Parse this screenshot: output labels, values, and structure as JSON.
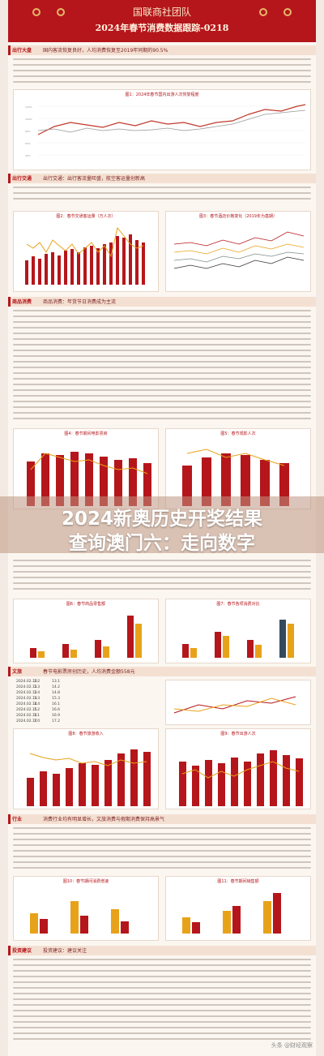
{
  "header": {
    "line1": "国联商社团队",
    "line2": "2024年春节消费数据跟踪-0218"
  },
  "sections": [
    {
      "tag": "出行大盘",
      "text": "国内客流恢复良好，人均消费恢复至2019年同期的90.5%"
    },
    {
      "tag": "出行交通",
      "text": "出行交通：出行客流量旺盛，航空客运量创新高"
    },
    {
      "tag": "商品消费",
      "text": "商品消费：年货节日消费成为主流"
    },
    {
      "tag": "文旅",
      "text": "春节电影票房创历史，人均消费金额558元"
    },
    {
      "tag": "行业",
      "text": "消费行业均有明显增长，文旅消费与假期消费保持高景气"
    },
    {
      "tag": "投资建议",
      "text": "投资建议：建议关注"
    }
  ],
  "banner": {
    "line1": "2024新奥历史开奖结果",
    "line2": "查询澳门六：走向数字"
  },
  "chart_captions": {
    "c1": "图1：2024年春节国内出游人次恢复程度",
    "c2": "图2：春节交通客运量（万人次）",
    "c3": "图3：春节酒店价格变化（2019年为基期）",
    "c4": "图4：春节期间电影票房",
    "c5": "图5：春节观影人次",
    "c6": "图6：春节商品零售额",
    "c7": "图7：春节各项消费对比",
    "c8": "图8：春节旅游收入",
    "c9": "图9：春节出游人次",
    "c10": "图10：春节期间消费增速",
    "c11": "图11：春节期间销售额"
  },
  "table": {
    "rows": [
      [
        "2024.02.10",
        "1.2",
        "13.1"
      ],
      [
        "2024.02.11",
        "1.3",
        "14.2"
      ],
      [
        "2024.02.12",
        "1.4",
        "14.8"
      ],
      [
        "2024.02.13",
        "1.3",
        "15.3"
      ],
      [
        "2024.02.14",
        "1.4",
        "16.1"
      ],
      [
        "2024.02.15",
        "1.2",
        "16.6"
      ],
      [
        "2024.02.16",
        "1.1",
        "16.9"
      ],
      [
        "2024.02.17",
        "1.0",
        "17.2"
      ]
    ]
  },
  "watermark": "头条 @财经观察",
  "colors": {
    "accent": "#b5161b",
    "gold": "#e8a21a",
    "bg": "#fbf6f0"
  }
}
